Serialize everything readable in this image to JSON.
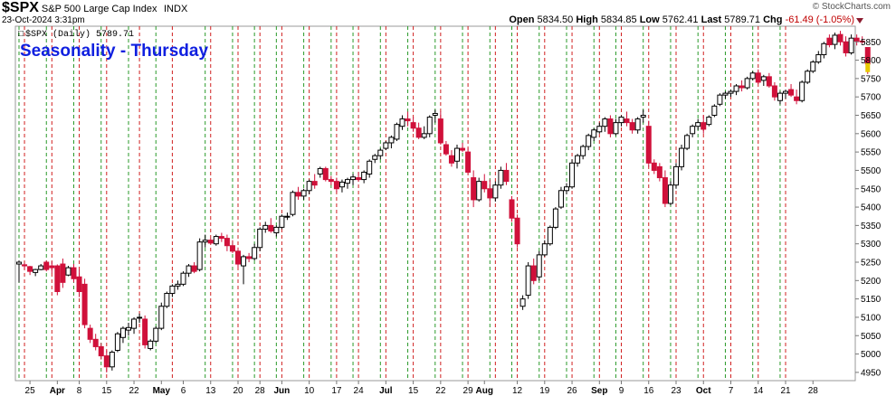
{
  "header": {
    "symbol": "$SPX",
    "name": "S&P 500 Large Cap Index",
    "exchange": "INDX",
    "date": "23-Oct-2024 3:31pm",
    "brand": "© StockCharts.com",
    "open_label": "Open",
    "open": "5834.50",
    "high_label": "High",
    "high": "5834.85",
    "low_label": "Low",
    "low": "5762.41",
    "last_label": "Last",
    "last": "5789.71",
    "chg_label": "Chg",
    "chg": "-61.49 (-1.05%)"
  },
  "legend": {
    "text": "$SPX (Daily) 5789.71"
  },
  "overlay_title": "Seasonality - Thursday",
  "colors": {
    "up": "#000000",
    "down": "#d0103a",
    "last": "#e8c800",
    "green_line": "#2a9a2a",
    "red_line": "#d02020"
  },
  "chart_data": {
    "type": "candlestick",
    "title": "Seasonality - Thursday",
    "ylim": [
      4930,
      5890
    ],
    "y_ticks": [
      4950,
      5000,
      5050,
      5100,
      5150,
      5200,
      5250,
      5300,
      5350,
      5400,
      5450,
      5500,
      5550,
      5600,
      5650,
      5700,
      5750,
      5800,
      5850
    ],
    "x_labels": [
      {
        "i": 2,
        "label": "25",
        "bold": false
      },
      {
        "i": 7,
        "label": "Apr",
        "bold": true
      },
      {
        "i": 11,
        "label": "8",
        "bold": false
      },
      {
        "i": 16,
        "label": "15",
        "bold": false
      },
      {
        "i": 21,
        "label": "22",
        "bold": false
      },
      {
        "i": 26,
        "label": "May",
        "bold": true
      },
      {
        "i": 30,
        "label": "6",
        "bold": false
      },
      {
        "i": 35,
        "label": "13",
        "bold": false
      },
      {
        "i": 40,
        "label": "20",
        "bold": false
      },
      {
        "i": 44,
        "label": "28",
        "bold": false
      },
      {
        "i": 48,
        "label": "Jun",
        "bold": true
      },
      {
        "i": 53,
        "label": "10",
        "bold": false
      },
      {
        "i": 58,
        "label": "17",
        "bold": false
      },
      {
        "i": 62,
        "label": "24",
        "bold": false
      },
      {
        "i": 67,
        "label": "Jul",
        "bold": true
      },
      {
        "i": 72,
        "label": "15",
        "bold": false
      },
      {
        "i": 77,
        "label": "22",
        "bold": false
      },
      {
        "i": 82,
        "label": "29",
        "bold": false
      },
      {
        "i": 85,
        "label": "Aug",
        "bold": true
      },
      {
        "i": 91,
        "label": "12",
        "bold": false
      },
      {
        "i": 96,
        "label": "19",
        "bold": false
      },
      {
        "i": 101,
        "label": "26",
        "bold": false
      },
      {
        "i": 106,
        "label": "Sep",
        "bold": true
      },
      {
        "i": 110,
        "label": "9",
        "bold": false
      },
      {
        "i": 115,
        "label": "16",
        "bold": false
      },
      {
        "i": 120,
        "label": "23",
        "bold": false
      },
      {
        "i": 125,
        "label": "Oct",
        "bold": true
      },
      {
        "i": 130,
        "label": "7",
        "bold": false
      },
      {
        "i": 135,
        "label": "14",
        "bold": false
      },
      {
        "i": 140,
        "label": "21",
        "bold": false
      },
      {
        "i": 145,
        "label": "28",
        "bold": false
      }
    ],
    "green_lines": [
      0,
      5,
      10,
      15,
      20,
      25,
      34,
      39,
      43,
      47,
      52,
      57,
      61,
      66,
      71,
      76,
      81,
      86,
      90,
      95,
      100,
      105,
      109,
      114,
      119,
      124,
      129,
      134,
      139
    ],
    "red_lines": [
      1,
      6,
      11,
      16,
      22,
      28,
      35,
      40,
      44,
      48,
      53,
      58,
      62,
      67,
      72,
      77,
      82,
      87,
      91,
      96,
      101,
      106,
      110,
      115,
      120,
      125,
      130,
      135,
      140
    ],
    "ohlc": [
      [
        5245,
        5255,
        5195,
        5250
      ],
      [
        5243,
        5248,
        5230,
        5240
      ],
      [
        5238,
        5240,
        5215,
        5225
      ],
      [
        5222,
        5232,
        5212,
        5230
      ],
      [
        5230,
        5245,
        5228,
        5240
      ],
      [
        5250,
        5255,
        5225,
        5230
      ],
      [
        5240,
        5252,
        5220,
        5235
      ],
      [
        5240,
        5244,
        5160,
        5170
      ],
      [
        5245,
        5260,
        5180,
        5195
      ],
      [
        5215,
        5240,
        5212,
        5235
      ],
      [
        5235,
        5245,
        5195,
        5205
      ],
      [
        5210,
        5230,
        5155,
        5170
      ],
      [
        5190,
        5205,
        5070,
        5080
      ],
      [
        5070,
        5080,
        5030,
        5040
      ],
      [
        5040,
        5055,
        5010,
        5020
      ],
      [
        5020,
        5030,
        4985,
        4995
      ],
      [
        4995,
        5010,
        4950,
        4965
      ],
      [
        4965,
        5010,
        4955,
        5005
      ],
      [
        5010,
        5060,
        5005,
        5055
      ],
      [
        5045,
        5075,
        5030,
        5070
      ],
      [
        5065,
        5085,
        5050,
        5072
      ],
      [
        5070,
        5100,
        5055,
        5095
      ],
      [
        5100,
        5110,
        5085,
        5100
      ],
      [
        5095,
        5105,
        5015,
        5025
      ],
      [
        5015,
        5040,
        5010,
        5035
      ],
      [
        5035,
        5075,
        5030,
        5070
      ],
      [
        5070,
        5140,
        5065,
        5130
      ],
      [
        5130,
        5170,
        5125,
        5165
      ],
      [
        5165,
        5190,
        5155,
        5185
      ],
      [
        5185,
        5200,
        5175,
        5190
      ],
      [
        5190,
        5225,
        5185,
        5220
      ],
      [
        5220,
        5245,
        5210,
        5240
      ],
      [
        5240,
        5250,
        5220,
        5225
      ],
      [
        5230,
        5315,
        5225,
        5305
      ],
      [
        5305,
        5325,
        5290,
        5310
      ],
      [
        5310,
        5315,
        5300,
        5302
      ],
      [
        5300,
        5325,
        5295,
        5320
      ],
      [
        5320,
        5330,
        5305,
        5315
      ],
      [
        5315,
        5325,
        5280,
        5295
      ],
      [
        5295,
        5310,
        5275,
        5280
      ],
      [
        5280,
        5290,
        5235,
        5245
      ],
      [
        5240,
        5270,
        5190,
        5265
      ],
      [
        5265,
        5275,
        5250,
        5260
      ],
      [
        5260,
        5300,
        5255,
        5290
      ],
      [
        5290,
        5345,
        5280,
        5340
      ],
      [
        5340,
        5360,
        5330,
        5350
      ],
      [
        5350,
        5370,
        5330,
        5335
      ],
      [
        5330,
        5350,
        5320,
        5345
      ],
      [
        5345,
        5380,
        5340,
        5375
      ],
      [
        5375,
        5385,
        5365,
        5375
      ],
      [
        5380,
        5445,
        5375,
        5440
      ],
      [
        5440,
        5455,
        5420,
        5430
      ],
      [
        5430,
        5450,
        5420,
        5445
      ],
      [
        5445,
        5475,
        5435,
        5470
      ],
      [
        5470,
        5490,
        5450,
        5460
      ],
      [
        5490,
        5510,
        5480,
        5505
      ],
      [
        5505,
        5510,
        5470,
        5475
      ],
      [
        5475,
        5485,
        5460,
        5470
      ],
      [
        5470,
        5480,
        5440,
        5450
      ],
      [
        5455,
        5475,
        5440,
        5468
      ],
      [
        5465,
        5480,
        5450,
        5475
      ],
      [
        5475,
        5490,
        5460,
        5482
      ],
      [
        5480,
        5495,
        5470,
        5475
      ],
      [
        5475,
        5500,
        5465,
        5495
      ],
      [
        5490,
        5530,
        5480,
        5525
      ],
      [
        5530,
        5545,
        5520,
        5540
      ],
      [
        5540,
        5560,
        5530,
        5555
      ],
      [
        5560,
        5580,
        5555,
        5575
      ],
      [
        5575,
        5595,
        5560,
        5590
      ],
      [
        5585,
        5630,
        5580,
        5625
      ],
      [
        5620,
        5650,
        5610,
        5640
      ],
      [
        5640,
        5660,
        5620,
        5635
      ],
      [
        5630,
        5645,
        5605,
        5615
      ],
      [
        5615,
        5630,
        5585,
        5590
      ],
      [
        5590,
        5620,
        5585,
        5600
      ],
      [
        5600,
        5650,
        5590,
        5645
      ],
      [
        5650,
        5665,
        5630,
        5655
      ],
      [
        5640,
        5660,
        5570,
        5575
      ],
      [
        5570,
        5580,
        5540,
        5545
      ],
      [
        5540,
        5555,
        5510,
        5520
      ],
      [
        5525,
        5570,
        5505,
        5560
      ],
      [
        5560,
        5575,
        5550,
        5555
      ],
      [
        5550,
        5560,
        5490,
        5495
      ],
      [
        5480,
        5500,
        5400,
        5420
      ],
      [
        5420,
        5480,
        5415,
        5470
      ],
      [
        5470,
        5490,
        5440,
        5450
      ],
      [
        5450,
        5475,
        5400,
        5425
      ],
      [
        5425,
        5470,
        5415,
        5460
      ],
      [
        5460,
        5510,
        5450,
        5500
      ],
      [
        5500,
        5520,
        5460,
        5470
      ],
      [
        5420,
        5430,
        5360,
        5370
      ],
      [
        5370,
        5380,
        5290,
        5300
      ],
      [
        5130,
        5160,
        5120,
        5150
      ],
      [
        5160,
        5250,
        5150,
        5240
      ],
      [
        5240,
        5260,
        5190,
        5200
      ],
      [
        5210,
        5280,
        5200,
        5270
      ],
      [
        5270,
        5310,
        5265,
        5300
      ],
      [
        5300,
        5350,
        5295,
        5345
      ],
      [
        5345,
        5400,
        5340,
        5395
      ],
      [
        5400,
        5455,
        5395,
        5445
      ],
      [
        5445,
        5465,
        5435,
        5455
      ],
      [
        5455,
        5530,
        5450,
        5520
      ],
      [
        5520,
        5545,
        5510,
        5540
      ],
      [
        5540,
        5570,
        5530,
        5565
      ],
      [
        5565,
        5600,
        5555,
        5595
      ],
      [
        5590,
        5615,
        5580,
        5610
      ],
      [
        5605,
        5630,
        5600,
        5620
      ],
      [
        5620,
        5645,
        5605,
        5640
      ],
      [
        5640,
        5650,
        5590,
        5600
      ],
      [
        5600,
        5640,
        5595,
        5630
      ],
      [
        5630,
        5650,
        5620,
        5645
      ],
      [
        5640,
        5660,
        5620,
        5630
      ],
      [
        5630,
        5640,
        5600,
        5610
      ],
      [
        5610,
        5645,
        5600,
        5640
      ],
      [
        5645,
        5665,
        5630,
        5650
      ],
      [
        5620,
        5635,
        5510,
        5520
      ],
      [
        5520,
        5530,
        5490,
        5500
      ],
      [
        5510,
        5520,
        5470,
        5480
      ],
      [
        5480,
        5500,
        5400,
        5410
      ],
      [
        5410,
        5470,
        5405,
        5460
      ],
      [
        5460,
        5520,
        5450,
        5510
      ],
      [
        5510,
        5570,
        5500,
        5560
      ],
      [
        5560,
        5600,
        5555,
        5595
      ],
      [
        5600,
        5625,
        5590,
        5620
      ],
      [
        5620,
        5640,
        5610,
        5630
      ],
      [
        5630,
        5650,
        5600,
        5612
      ],
      [
        5625,
        5650,
        5620,
        5645
      ],
      [
        5650,
        5680,
        5645,
        5675
      ],
      [
        5680,
        5710,
        5675,
        5705
      ],
      [
        5705,
        5715,
        5695,
        5710
      ],
      [
        5710,
        5720,
        5700,
        5715
      ],
      [
        5715,
        5735,
        5705,
        5730
      ],
      [
        5730,
        5745,
        5715,
        5725
      ],
      [
        5725,
        5755,
        5720,
        5750
      ],
      [
        5750,
        5770,
        5745,
        5765
      ],
      [
        5765,
        5775,
        5735,
        5740
      ],
      [
        5745,
        5760,
        5730,
        5755
      ],
      [
        5755,
        5765,
        5725,
        5730
      ],
      [
        5730,
        5740,
        5690,
        5700
      ],
      [
        5690,
        5715,
        5680,
        5710
      ],
      [
        5710,
        5720,
        5695,
        5715
      ],
      [
        5720,
        5735,
        5700,
        5705
      ],
      [
        5700,
        5720,
        5680,
        5690
      ],
      [
        5690,
        5745,
        5685,
        5740
      ],
      [
        5740,
        5775,
        5735,
        5770
      ],
      [
        5770,
        5800,
        5765,
        5795
      ],
      [
        5795,
        5825,
        5790,
        5815
      ],
      [
        5815,
        5850,
        5805,
        5845
      ],
      [
        5860,
        5870,
        5835,
        5842
      ],
      [
        5843,
        5875,
        5830,
        5868
      ],
      [
        5870,
        5880,
        5840,
        5850
      ],
      [
        5850,
        5865,
        5810,
        5820
      ],
      [
        5820,
        5870,
        5815,
        5860
      ],
      [
        5860,
        5870,
        5840,
        5852
      ],
      [
        5852,
        5865,
        5845,
        5850
      ],
      [
        5834.5,
        5834.85,
        5762.41,
        5789.71
      ]
    ]
  }
}
